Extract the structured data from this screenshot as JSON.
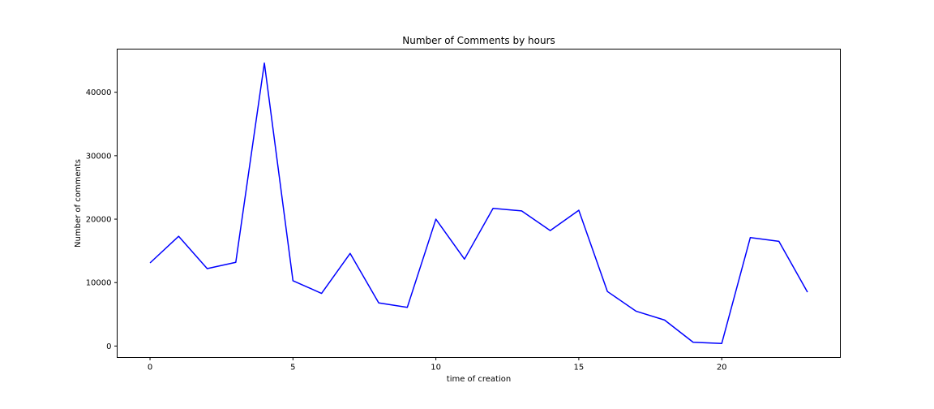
{
  "chart_data": {
    "type": "line",
    "title": "Number of Comments by hours",
    "xlabel": "time of creation",
    "ylabel": "Number of comments",
    "x": [
      0,
      1,
      2,
      3,
      4,
      5,
      6,
      7,
      8,
      9,
      10,
      11,
      12,
      13,
      14,
      15,
      16,
      17,
      18,
      19,
      20,
      21,
      22,
      23
    ],
    "series": [
      {
        "color": "#0000ff",
        "values": [
          13100,
          17300,
          12200,
          13200,
          44600,
          10300,
          8300,
          14600,
          6800,
          6100,
          20000,
          13700,
          21700,
          21300,
          18200,
          21400,
          8600,
          5500,
          4100,
          600,
          400,
          17100,
          16500,
          8500
        ]
      }
    ],
    "xlim": [
      -1.15,
      24.15
    ],
    "ylim": [
      -1800,
      46800
    ],
    "xticks": [
      0,
      5,
      10,
      15,
      20
    ],
    "yticks": [
      0,
      10000,
      20000,
      30000,
      40000
    ],
    "grid": false
  }
}
